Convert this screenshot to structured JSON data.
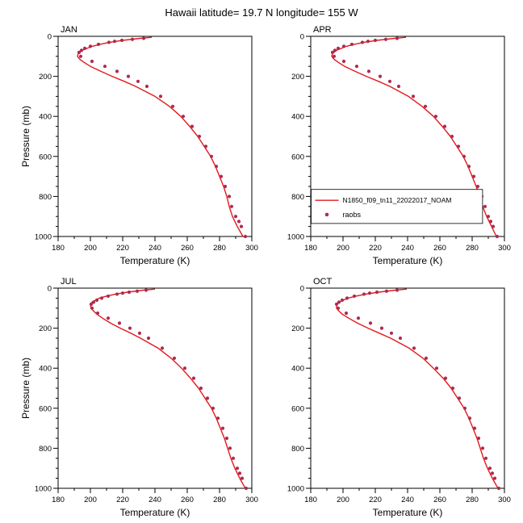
{
  "chart_data": {
    "type": "line",
    "title": "Hawaii  latitude= 19.7 N longitude= 155 W",
    "xlabel": "Temperature (K)",
    "ylabel": "Pressure (mb)",
    "xlim": [
      180,
      300
    ],
    "ylim": [
      0,
      1000
    ],
    "y_inverted": true,
    "x_major_ticks": [
      180,
      200,
      220,
      240,
      260,
      280,
      300
    ],
    "x_minor_step": 10,
    "y_major_ticks": [
      0,
      200,
      400,
      600,
      800,
      1000
    ],
    "y_minor_step": 50,
    "colors": {
      "model": "#e31a1c",
      "raobs": "#b02a50",
      "frame": "#000000"
    },
    "legend": {
      "panel": "APR",
      "entries": [
        {
          "type": "line",
          "label": "N1850_f09_tn11_22022017_NOAM"
        },
        {
          "type": "dot",
          "label": "raobs"
        }
      ]
    },
    "panels": [
      {
        "label": "JAN",
        "model": {
          "pressure": [
            5,
            10,
            20,
            30,
            40,
            50,
            70,
            85,
            100,
            115,
            130,
            150,
            175,
            200,
            225,
            250,
            300,
            350,
            400,
            450,
            500,
            550,
            600,
            650,
            700,
            750,
            800,
            850,
            900,
            950,
            1000
          ],
          "temp": [
            238,
            231,
            220,
            212,
            206,
            201,
            195,
            192.5,
            192,
            193.5,
            196,
            200,
            206.5,
            213.5,
            221,
            228,
            240,
            249,
            256,
            261.5,
            266.5,
            270.5,
            274.5,
            277.5,
            280,
            282.5,
            284.5,
            286,
            288,
            291,
            294.5
          ]
        },
        "raobs": {
          "pressure": [
            1000,
            950,
            925,
            900,
            850,
            800,
            750,
            700,
            650,
            600,
            550,
            500,
            450,
            400,
            350,
            300,
            250,
            225,
            200,
            175,
            150,
            125,
            100,
            80,
            70,
            60,
            50,
            40,
            30,
            25,
            20,
            15,
            10
          ],
          "temp": [
            296,
            293.5,
            292,
            290,
            287.5,
            286,
            283.5,
            281,
            278,
            275,
            271.5,
            267.5,
            263,
            257.5,
            251,
            243.5,
            235,
            229.5,
            223.5,
            216.5,
            209,
            201,
            194,
            193,
            194.5,
            196.5,
            200,
            205,
            211.5,
            215,
            219.5,
            226,
            233
          ]
        }
      },
      {
        "label": "APR",
        "model": {
          "pressure": [
            5,
            10,
            20,
            30,
            40,
            50,
            70,
            85,
            100,
            115,
            130,
            150,
            175,
            200,
            225,
            250,
            300,
            350,
            400,
            450,
            500,
            550,
            600,
            650,
            700,
            750,
            800,
            850,
            900,
            950,
            1000
          ],
          "temp": [
            239,
            232,
            221,
            213,
            207,
            202,
            196,
            193.5,
            193,
            194.5,
            197,
            201,
            207.5,
            214.5,
            222,
            229,
            240.5,
            249,
            256,
            261.5,
            266.5,
            270.5,
            274.5,
            277.5,
            280,
            282.5,
            284.5,
            286.5,
            289,
            292,
            295
          ]
        },
        "raobs": {
          "pressure": [
            1000,
            950,
            925,
            900,
            850,
            800,
            750,
            700,
            650,
            600,
            550,
            500,
            450,
            400,
            350,
            300,
            250,
            225,
            200,
            175,
            150,
            125,
            100,
            80,
            70,
            60,
            50,
            40,
            30,
            25,
            20,
            15,
            10
          ],
          "temp": [
            295.5,
            293,
            291.5,
            290,
            288,
            286,
            283.5,
            281,
            278,
            275,
            271.5,
            267.5,
            263,
            257.5,
            251,
            243.5,
            234.5,
            229,
            223,
            216,
            208.5,
            200.5,
            194.5,
            193.5,
            195,
            197,
            200.5,
            205.5,
            212,
            215.5,
            220,
            226.5,
            233.5
          ]
        }
      },
      {
        "label": "JUL",
        "model": {
          "pressure": [
            5,
            10,
            20,
            30,
            40,
            50,
            70,
            85,
            100,
            115,
            130,
            150,
            175,
            200,
            225,
            250,
            300,
            350,
            400,
            450,
            500,
            550,
            600,
            650,
            700,
            750,
            800,
            850,
            900,
            950,
            1000
          ],
          "temp": [
            240,
            233,
            223,
            215.5,
            210,
            205.5,
            201,
            200,
            200.5,
            202,
            204,
            207.5,
            212.5,
            218.5,
            225,
            231,
            242,
            250,
            256.5,
            262,
            267,
            271,
            275,
            278,
            280.5,
            283,
            285,
            287,
            289.5,
            292.5,
            296
          ]
        },
        "raobs": {
          "pressure": [
            1000,
            950,
            925,
            900,
            850,
            800,
            750,
            700,
            650,
            600,
            550,
            500,
            450,
            400,
            350,
            300,
            250,
            225,
            200,
            175,
            150,
            125,
            100,
            80,
            70,
            60,
            50,
            40,
            30,
            25,
            20,
            15,
            10
          ],
          "temp": [
            296.5,
            294,
            292.5,
            291,
            288.5,
            286.5,
            284.5,
            282,
            279,
            276,
            272.5,
            268.5,
            264,
            258.5,
            252,
            244.5,
            236,
            230.5,
            224.5,
            218,
            211,
            204.5,
            201,
            200.5,
            202,
            204,
            207,
            211,
            216.5,
            220,
            224,
            229,
            234.5
          ]
        }
      },
      {
        "label": "OCT",
        "model": {
          "pressure": [
            5,
            10,
            20,
            30,
            40,
            50,
            70,
            85,
            100,
            115,
            130,
            150,
            175,
            200,
            225,
            250,
            300,
            350,
            400,
            450,
            500,
            550,
            600,
            650,
            700,
            750,
            800,
            850,
            900,
            950,
            1000
          ],
          "temp": [
            239.5,
            232.5,
            222,
            214,
            208,
            203,
            197.5,
            196,
            196,
            197.5,
            199.5,
            203.5,
            209,
            215.5,
            222.5,
            229.5,
            241,
            249.5,
            256,
            262,
            267,
            271,
            275,
            278,
            280.5,
            283,
            285,
            287,
            289.5,
            292.5,
            296
          ]
        },
        "raobs": {
          "pressure": [
            1000,
            950,
            925,
            900,
            850,
            800,
            750,
            700,
            650,
            600,
            550,
            500,
            450,
            400,
            350,
            300,
            250,
            225,
            200,
            175,
            150,
            125,
            100,
            80,
            70,
            60,
            50,
            40,
            30,
            25,
            20,
            15,
            10
          ],
          "temp": [
            296.5,
            294,
            292.5,
            291,
            288.5,
            286.5,
            284,
            281.5,
            278.5,
            275.5,
            272,
            268,
            263.5,
            258,
            251.5,
            244,
            235.5,
            230,
            224,
            217,
            209.5,
            202,
            197,
            196,
            197.5,
            199.5,
            202.5,
            207,
            213,
            216.5,
            221,
            227,
            233.5
          ]
        }
      }
    ]
  }
}
